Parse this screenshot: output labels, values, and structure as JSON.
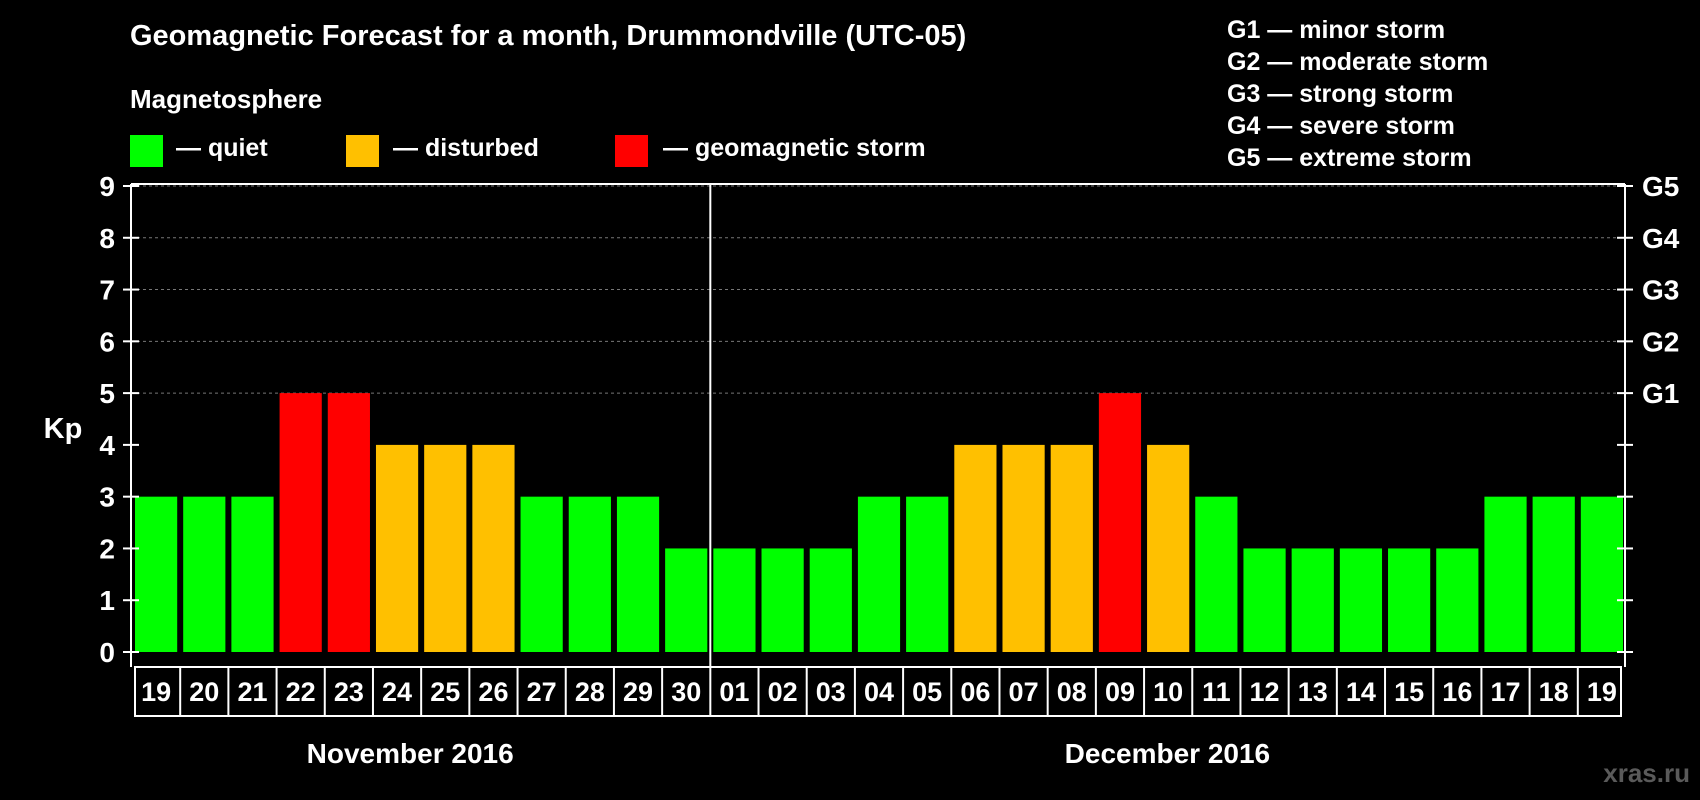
{
  "header": {
    "title": "Geomagnetic Forecast for a month, Drummondville (UTC-05)",
    "subtitle": "Magnetosphere"
  },
  "legend": {
    "items": [
      {
        "label": "— quiet",
        "color": "#00ff00"
      },
      {
        "label": "— disturbed",
        "color": "#ffc000"
      },
      {
        "label": "— geomagnetic storm",
        "color": "#ff0000"
      }
    ]
  },
  "storm_scale": [
    "G1 — minor storm",
    "G2 — moderate storm",
    "G3 — strong storm",
    "G4 — severe storm",
    "G5 — extreme storm"
  ],
  "chart_data": {
    "type": "bar",
    "title": "Geomagnetic Forecast for a month, Drummondville (UTC-05)",
    "ylabel": "Kp",
    "ylim": [
      0,
      9
    ],
    "yticks": [
      "0",
      "1",
      "2",
      "3",
      "4",
      "5",
      "6",
      "7",
      "8",
      "9"
    ],
    "right_ticks": [
      {
        "kp": 5,
        "label": "G1"
      },
      {
        "kp": 6,
        "label": "G2"
      },
      {
        "kp": 7,
        "label": "G3"
      },
      {
        "kp": 8,
        "label": "G4"
      },
      {
        "kp": 9,
        "label": "G5"
      }
    ],
    "categories": [
      "19",
      "20",
      "21",
      "22",
      "23",
      "24",
      "25",
      "26",
      "27",
      "28",
      "29",
      "30",
      "01",
      "02",
      "03",
      "04",
      "05",
      "06",
      "07",
      "08",
      "09",
      "10",
      "11",
      "12",
      "13",
      "14",
      "15",
      "16",
      "17",
      "18",
      "19"
    ],
    "values": [
      3,
      3,
      3,
      5,
      5,
      4,
      4,
      4,
      3,
      3,
      3,
      2,
      2,
      2,
      2,
      3,
      3,
      4,
      4,
      4,
      5,
      4,
      3,
      2,
      2,
      2,
      2,
      2,
      3,
      3,
      3
    ],
    "color_by_value": {
      "quiet": "#00ff00",
      "disturbed": "#ffc000",
      "storm": "#ff0000"
    },
    "months": [
      "November 2016",
      "December 2016"
    ],
    "month_split_index": 12
  },
  "footer": {
    "credit": "xras.ru"
  }
}
